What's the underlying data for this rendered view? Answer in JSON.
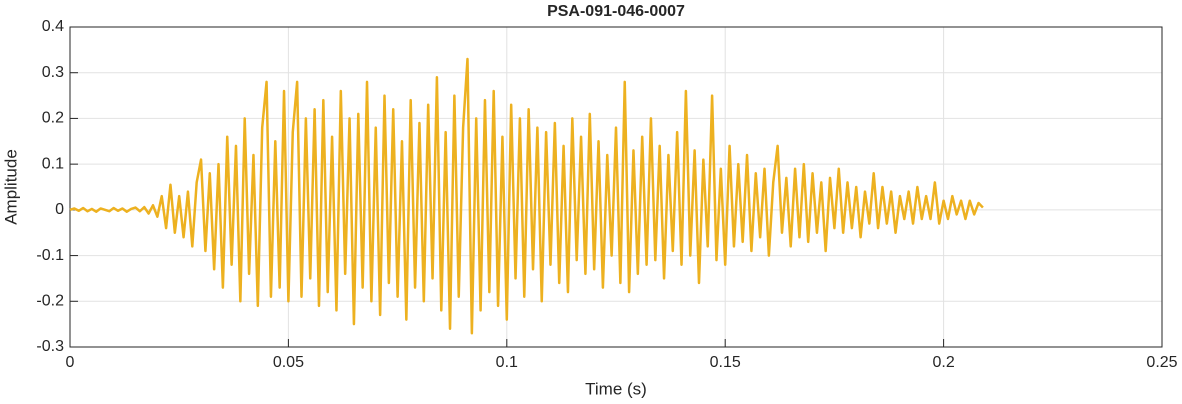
{
  "chart_data": {
    "type": "line",
    "title": "PSA-091-046-0007",
    "xlabel": "Time (s)",
    "ylabel": "Amplitude",
    "color": "#EDB120",
    "grid": true,
    "xlim": [
      0,
      0.25
    ],
    "xticks": [
      0,
      0.05,
      0.1,
      0.15,
      0.2,
      0.25
    ],
    "ylim": [
      -0.3,
      0.4
    ],
    "yticks": [
      -0.3,
      -0.2,
      -0.1,
      0,
      0.1,
      0.2,
      0.3,
      0.4
    ],
    "x": [
      0,
      0.001,
      0.002,
      0.003,
      0.004,
      0.005,
      0.006,
      0.007,
      0.008,
      0.009,
      0.01,
      0.011,
      0.012,
      0.013,
      0.014,
      0.015,
      0.016,
      0.017,
      0.018,
      0.019,
      0.02,
      0.021,
      0.022,
      0.023,
      0.024,
      0.025,
      0.026,
      0.027,
      0.028,
      0.029,
      0.03,
      0.031,
      0.032,
      0.033,
      0.034,
      0.035,
      0.036,
      0.037,
      0.038,
      0.039,
      0.04,
      0.041,
      0.042,
      0.043,
      0.044,
      0.045,
      0.046,
      0.047,
      0.048,
      0.049,
      0.05,
      0.051,
      0.052,
      0.053,
      0.054,
      0.055,
      0.056,
      0.057,
      0.058,
      0.059,
      0.06,
      0.061,
      0.062,
      0.063,
      0.064,
      0.065,
      0.066,
      0.067,
      0.068,
      0.069,
      0.07,
      0.071,
      0.072,
      0.073,
      0.074,
      0.075,
      0.076,
      0.077,
      0.078,
      0.079,
      0.08,
      0.081,
      0.082,
      0.083,
      0.084,
      0.085,
      0.086,
      0.087,
      0.088,
      0.089,
      0.09,
      0.091,
      0.092,
      0.093,
      0.094,
      0.095,
      0.096,
      0.097,
      0.098,
      0.099,
      0.1,
      0.101,
      0.102,
      0.103,
      0.104,
      0.105,
      0.106,
      0.107,
      0.108,
      0.109,
      0.11,
      0.111,
      0.112,
      0.113,
      0.114,
      0.115,
      0.116,
      0.117,
      0.118,
      0.119,
      0.12,
      0.121,
      0.122,
      0.123,
      0.124,
      0.125,
      0.126,
      0.127,
      0.128,
      0.129,
      0.13,
      0.131,
      0.132,
      0.133,
      0.134,
      0.135,
      0.136,
      0.137,
      0.138,
      0.139,
      0.14,
      0.141,
      0.142,
      0.143,
      0.144,
      0.145,
      0.146,
      0.147,
      0.148,
      0.149,
      0.15,
      0.151,
      0.152,
      0.153,
      0.154,
      0.155,
      0.156,
      0.157,
      0.158,
      0.159,
      0.16,
      0.161,
      0.162,
      0.163,
      0.164,
      0.165,
      0.166,
      0.167,
      0.168,
      0.169,
      0.17,
      0.171,
      0.172,
      0.173,
      0.174,
      0.175,
      0.176,
      0.177,
      0.178,
      0.179,
      0.18,
      0.181,
      0.182,
      0.183,
      0.184,
      0.185,
      0.186,
      0.187,
      0.188,
      0.189,
      0.19,
      0.191,
      0.192,
      0.193,
      0.194,
      0.195,
      0.196,
      0.197,
      0.198,
      0.199,
      0.2,
      0.201,
      0.202,
      0.203,
      0.204,
      0.205,
      0.206,
      0.207,
      0.208,
      0.209
    ],
    "values": [
      0,
      0.003,
      -0.002,
      0.004,
      -0.003,
      0.002,
      -0.004,
      0.003,
      0,
      -0.003,
      0.004,
      -0.002,
      0.003,
      -0.004,
      0.002,
      0.005,
      -0.003,
      0.006,
      -0.008,
      0.01,
      -0.015,
      0.03,
      -0.04,
      0.055,
      -0.05,
      0.03,
      -0.06,
      0.04,
      -0.08,
      0.06,
      0.11,
      -0.09,
      0.08,
      -0.13,
      0.1,
      -0.17,
      0.16,
      -0.12,
      0.14,
      -0.2,
      0.2,
      -0.14,
      0.12,
      -0.21,
      0.18,
      0.28,
      -0.19,
      0.15,
      -0.17,
      0.26,
      -0.2,
      0.17,
      0.28,
      -0.19,
      0.2,
      -0.15,
      0.22,
      -0.21,
      0.24,
      -0.18,
      0.16,
      -0.22,
      0.26,
      -0.14,
      0.2,
      -0.25,
      0.21,
      -0.17,
      0.28,
      -0.2,
      0.18,
      -0.23,
      0.25,
      -0.16,
      0.22,
      -0.19,
      0.15,
      -0.24,
      0.24,
      -0.17,
      0.19,
      -0.2,
      0.23,
      -0.15,
      0.29,
      -0.22,
      0.17,
      -0.26,
      0.25,
      -0.19,
      0.18,
      0.33,
      -0.27,
      0.2,
      -0.22,
      0.24,
      -0.18,
      0.26,
      -0.21,
      0.16,
      -0.24,
      0.23,
      -0.15,
      0.2,
      -0.19,
      0.22,
      -0.13,
      0.18,
      -0.2,
      0.17,
      -0.12,
      0.19,
      -0.16,
      0.14,
      -0.18,
      0.2,
      -0.11,
      0.16,
      -0.14,
      0.21,
      -0.13,
      0.15,
      -0.17,
      0.12,
      -0.1,
      0.18,
      -0.16,
      0.28,
      -0.18,
      0.13,
      -0.14,
      0.16,
      -0.12,
      0.2,
      -0.11,
      0.14,
      -0.15,
      0.12,
      -0.09,
      0.17,
      -0.12,
      0.26,
      -0.1,
      0.13,
      -0.16,
      0.11,
      -0.08,
      0.25,
      -0.11,
      0.09,
      -0.12,
      0.14,
      -0.08,
      0.1,
      -0.07,
      0.12,
      -0.09,
      0.08,
      -0.06,
      0.09,
      -0.1,
      0.06,
      0.14,
      -0.05,
      0.07,
      -0.08,
      0.09,
      -0.06,
      0.1,
      -0.07,
      0.08,
      -0.05,
      0.06,
      -0.09,
      0.07,
      -0.04,
      0.09,
      -0.05,
      0.06,
      -0.04,
      0.05,
      -0.06,
      0.04,
      -0.03,
      0.08,
      -0.04,
      0.05,
      -0.03,
      0.04,
      -0.05,
      0.03,
      -0.02,
      0.04,
      -0.03,
      0.05,
      -0.02,
      0.03,
      -0.02,
      0.06,
      -0.03,
      0.02,
      -0.02,
      0.03,
      -0.01,
      0.02,
      -0.02,
      0.02,
      -0.01,
      0.015,
      0.005
    ]
  }
}
